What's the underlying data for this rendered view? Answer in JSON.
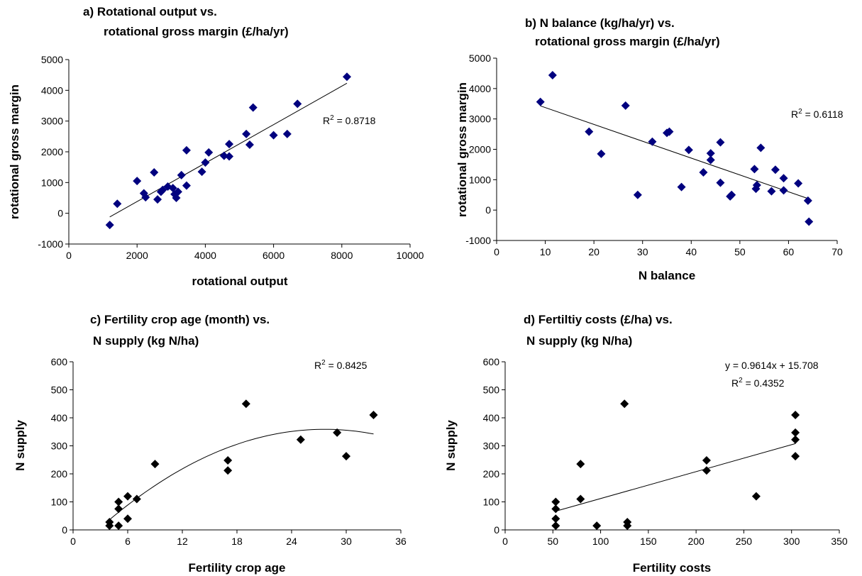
{
  "chart_data": [
    {
      "id": "a",
      "type": "scatter",
      "title": [
        "a) Rotational output vs.",
        "rotational gross margin (£/ha/yr)"
      ],
      "xlabel": "rotational output",
      "ylabel": "rotational gross margin",
      "xlim": [
        0,
        10000
      ],
      "ylim": [
        -1000,
        5000
      ],
      "xticks": [
        "0",
        "2000",
        "4000",
        "6000",
        "8000",
        "10000"
      ],
      "yticks": [
        "-1000",
        "0",
        "1000",
        "2000",
        "3000",
        "4000",
        "5000"
      ],
      "marker": "diamond",
      "marker_color": "#00007f",
      "points": [
        [
          1200,
          -380
        ],
        [
          1420,
          310
        ],
        [
          2000,
          1050
        ],
        [
          2200,
          650
        ],
        [
          2250,
          520
        ],
        [
          2500,
          1330
        ],
        [
          2600,
          450
        ],
        [
          2700,
          700
        ],
        [
          2750,
          760
        ],
        [
          2900,
          870
        ],
        [
          3050,
          820
        ],
        [
          3100,
          620
        ],
        [
          3150,
          500
        ],
        [
          3200,
          700
        ],
        [
          3300,
          1240
        ],
        [
          3450,
          900
        ],
        [
          3450,
          2050
        ],
        [
          3900,
          1350
        ],
        [
          4000,
          1650
        ],
        [
          4100,
          1980
        ],
        [
          4550,
          1870
        ],
        [
          4700,
          1850
        ],
        [
          4700,
          2250
        ],
        [
          5200,
          2580
        ],
        [
          5300,
          2230
        ],
        [
          5400,
          3440
        ],
        [
          6000,
          2540
        ],
        [
          6400,
          2580
        ],
        [
          6700,
          3560
        ],
        [
          8150,
          4440
        ]
      ],
      "trendline": {
        "type": "linear",
        "x": [
          1200,
          8150
        ],
        "y": [
          -120,
          4230
        ]
      },
      "annotations": [
        "R2 = 0.8718"
      ]
    },
    {
      "id": "b",
      "type": "scatter",
      "title": [
        "b) N balance (kg/ha/yr) vs.",
        "rotational gross margin (£/ha/yr)"
      ],
      "xlabel": "N balance",
      "ylabel": "rotational gross margin",
      "xlim": [
        0,
        70
      ],
      "ylim": [
        -1000,
        5000
      ],
      "xticks": [
        "0",
        "10",
        "20",
        "30",
        "40",
        "50",
        "60",
        "70"
      ],
      "yticks": [
        "-1000",
        "0",
        "1000",
        "2000",
        "3000",
        "4000",
        "5000"
      ],
      "marker": "diamond",
      "marker_color": "#00007f",
      "points": [
        [
          9,
          3560
        ],
        [
          11.5,
          4440
        ],
        [
          19,
          2580
        ],
        [
          21.5,
          1850
        ],
        [
          26.5,
          3440
        ],
        [
          29,
          500
        ],
        [
          32,
          2250
        ],
        [
          35,
          2540
        ],
        [
          35.5,
          2580
        ],
        [
          38,
          760
        ],
        [
          39.5,
          1980
        ],
        [
          42.5,
          1240
        ],
        [
          44,
          1870
        ],
        [
          44,
          1650
        ],
        [
          46,
          900
        ],
        [
          46,
          2230
        ],
        [
          48,
          450
        ],
        [
          48.3,
          500
        ],
        [
          53,
          1350
        ],
        [
          53.3,
          700
        ],
        [
          53.5,
          820
        ],
        [
          54.3,
          2050
        ],
        [
          56.5,
          620
        ],
        [
          57.3,
          1330
        ],
        [
          59,
          1050
        ],
        [
          59,
          650
        ],
        [
          62,
          880
        ],
        [
          64,
          310
        ],
        [
          64.2,
          -380
        ]
      ],
      "trendline": {
        "type": "linear",
        "x": [
          9,
          64
        ],
        "y": [
          3430,
          380
        ]
      },
      "annotations": [
        "R2 = 0.6118"
      ]
    },
    {
      "id": "c",
      "type": "scatter",
      "title": [
        "c) Fertility crop age (month) vs.",
        "N supply (kg N/ha)"
      ],
      "xlabel": "Fertility crop age",
      "ylabel": "N supply",
      "xlim": [
        0,
        36
      ],
      "ylim": [
        0,
        600
      ],
      "xticks": [
        "0",
        "6",
        "12",
        "18",
        "24",
        "30",
        "36"
      ],
      "yticks": [
        "0",
        "100",
        "200",
        "300",
        "400",
        "500",
        "600"
      ],
      "marker": "diamond",
      "marker_color": "#000000",
      "points": [
        [
          4,
          15
        ],
        [
          4,
          28
        ],
        [
          5,
          15
        ],
        [
          5,
          75
        ],
        [
          5,
          100
        ],
        [
          6,
          40
        ],
        [
          6,
          120
        ],
        [
          7,
          110
        ],
        [
          9,
          235
        ],
        [
          17,
          212
        ],
        [
          17,
          248
        ],
        [
          19,
          450
        ],
        [
          25,
          322
        ],
        [
          29,
          347
        ],
        [
          30,
          263
        ],
        [
          33,
          410
        ]
      ],
      "trendline": {
        "type": "poly2",
        "x_range": [
          4,
          33
        ],
        "coef": [
          -82.4,
          31.96,
          -0.5785
        ]
      },
      "annotations": [
        "R2 = 0.8425"
      ]
    },
    {
      "id": "d",
      "type": "scatter",
      "title": [
        "d) Fertiltiy costs (£/ha) vs.",
        "N supply (kg N/ha)"
      ],
      "xlabel": "Fertility costs",
      "ylabel": "N supply",
      "xlim": [
        0,
        350
      ],
      "ylim": [
        0,
        600
      ],
      "xticks": [
        "0",
        "50",
        "100",
        "150",
        "200",
        "250",
        "300",
        "350"
      ],
      "yticks": [
        "0",
        "100",
        "200",
        "300",
        "400",
        "500",
        "600"
      ],
      "marker": "diamond",
      "marker_color": "#000000",
      "points": [
        [
          53,
          15
        ],
        [
          53,
          40
        ],
        [
          53,
          75
        ],
        [
          53,
          100
        ],
        [
          79,
          235
        ],
        [
          79,
          110
        ],
        [
          96,
          15
        ],
        [
          125,
          450
        ],
        [
          128,
          15
        ],
        [
          128,
          28
        ],
        [
          211,
          212
        ],
        [
          211,
          248
        ],
        [
          263,
          120
        ],
        [
          304,
          322
        ],
        [
          304,
          347
        ],
        [
          304,
          410
        ],
        [
          304,
          263
        ]
      ],
      "trendline": {
        "type": "linear",
        "x": [
          53,
          304
        ],
        "y": [
          66.7,
          308
        ]
      },
      "annotations": [
        "y = 0.9614x + 15.708",
        "R2 = 0.4352"
      ]
    }
  ]
}
